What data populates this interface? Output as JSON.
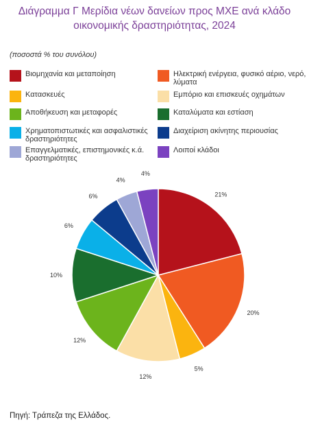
{
  "chart_data": {
    "type": "pie",
    "title": "Διάγραμμα Γ Μερίδια νέων δανείων προς ΜΧΕ ανά κλάδο οικονομικής δραστηριότητας, 2024",
    "subtitle": "(ποσοστά % του συνόλου)",
    "unit": "%",
    "categories": [
      "Βιομηχανία και μεταποίηση",
      "Ηλεκτρική ενέργεια, φυσικό αέριο, νερό, λύματα",
      "Κατασκευές",
      "Εμπόριο και επισκευές οχημάτων",
      "Αποθήκευση και μεταφορές",
      "Καταλύματα και εστίαση",
      "Χρηματοπιστωτικές και ασφαλιστικές δραστηριότητες",
      "Διαχείριση ακίνητης περιουσίας",
      "Επαγγελματικές, επιστημονικές κ.ά. δραστηριότητες",
      "Λοιποί κλάδοι"
    ],
    "colors": [
      "#b5121b",
      "#f05a22",
      "#fbb40f",
      "#fbdfa7",
      "#6cb41c",
      "#1a6e2e",
      "#0ab0e8",
      "#0c3c8c",
      "#9ea7d6",
      "#7b42c0"
    ],
    "pie_order": [
      0,
      1,
      2,
      3,
      4,
      5,
      6,
      7,
      8,
      9
    ],
    "slices": [
      {
        "category": "Βιομηχανία και μεταποίηση",
        "value": 21,
        "label": "21%"
      },
      {
        "category": "Ηλεκτρική ενέργεια, φυσικό αέριο, νερό, λύματα",
        "value": 20,
        "label": "20%"
      },
      {
        "category": "Κατασκευές",
        "value": 5,
        "label": "5%"
      },
      {
        "category": "Εμπόριο και επισκευές οχημάτων",
        "value": 12,
        "label": "12%"
      },
      {
        "category": "Αποθήκευση και μεταφορές",
        "value": 12,
        "label": "12%"
      },
      {
        "category": "Καταλύματα και εστίαση",
        "value": 10,
        "label": "10%"
      },
      {
        "category": "Χρηματοπιστωτικές και ασφαλιστικές δραστηριότητες",
        "value": 6,
        "label": "6%"
      },
      {
        "category": "Διαχείριση ακίνητης περιουσίας",
        "value": 6,
        "label": "6%"
      },
      {
        "category": "Επαγγελματικές, επιστημονικές κ.ά. δραστηριότητες",
        "value": 4,
        "label": "4%"
      },
      {
        "category": "Λοιποί κλάδοι",
        "value": 4,
        "label": "4%"
      }
    ],
    "legend_placement": "top"
  },
  "source": "Πηγή: Τράπεζα της Ελλάδος."
}
